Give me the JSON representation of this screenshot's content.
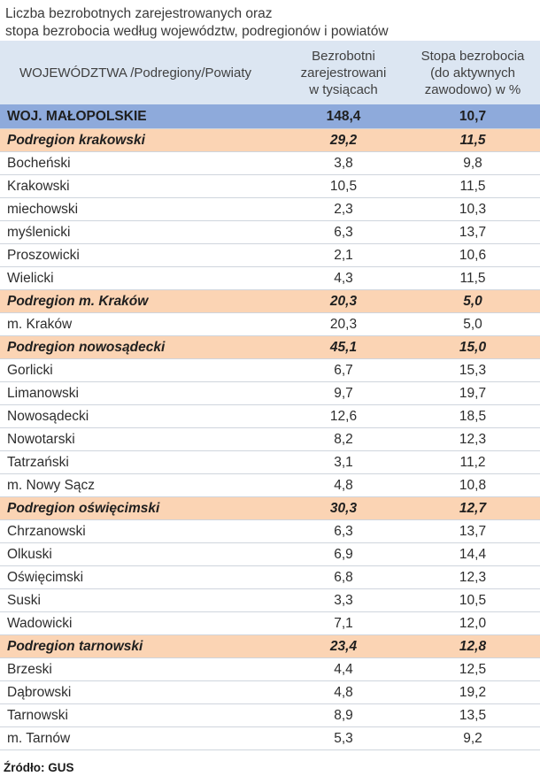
{
  "title": {
    "line1": "Liczba bezrobotnych zarejestrowanych oraz",
    "line2": "stopa bezrobocia według województw, podregionów  i  powiatów"
  },
  "table": {
    "headers": {
      "col1": "WOJEWÓDZTWA /Podregiony/Powiaty",
      "col2": [
        "Bezrobotni",
        "zarejestrowani",
        "w tysiącach"
      ],
      "col3": [
        "Stopa bezrobocia",
        "(do aktywnych",
        "zawodowo) w %"
      ]
    },
    "rows": [
      {
        "name": "WOJ. MAŁOPOLSKIE",
        "unemployed": "148,4",
        "rate": "10,7",
        "level": "woj"
      },
      {
        "name": "Podregion krakowski",
        "unemployed": "29,2",
        "rate": "11,5",
        "level": "pod"
      },
      {
        "name": "Bocheński",
        "unemployed": "3,8",
        "rate": "9,8",
        "level": "pow"
      },
      {
        "name": "Krakowski",
        "unemployed": "10,5",
        "rate": "11,5",
        "level": "pow"
      },
      {
        "name": "miechowski",
        "unemployed": "2,3",
        "rate": "10,3",
        "level": "pow"
      },
      {
        "name": "myślenicki",
        "unemployed": "6,3",
        "rate": "13,7",
        "level": "pow"
      },
      {
        "name": "Proszowicki",
        "unemployed": "2,1",
        "rate": "10,6",
        "level": "pow"
      },
      {
        "name": "Wielicki",
        "unemployed": "4,3",
        "rate": "11,5",
        "level": "pow"
      },
      {
        "name": "Podregion m. Kraków",
        "unemployed": "20,3",
        "rate": "5,0",
        "level": "pod"
      },
      {
        "name": "m. Kraków",
        "unemployed": "20,3",
        "rate": "5,0",
        "level": "pow"
      },
      {
        "name": "Podregion nowosądecki",
        "unemployed": "45,1",
        "rate": "15,0",
        "level": "pod"
      },
      {
        "name": "Gorlicki",
        "unemployed": "6,7",
        "rate": "15,3",
        "level": "pow"
      },
      {
        "name": "Limanowski",
        "unemployed": "9,7",
        "rate": "19,7",
        "level": "pow"
      },
      {
        "name": "Nowosądecki",
        "unemployed": "12,6",
        "rate": "18,5",
        "level": "pow"
      },
      {
        "name": "Nowotarski",
        "unemployed": "8,2",
        "rate": "12,3",
        "level": "pow"
      },
      {
        "name": "Tatrzański",
        "unemployed": "3,1",
        "rate": "11,2",
        "level": "pow"
      },
      {
        "name": "m. Nowy Sącz",
        "unemployed": "4,8",
        "rate": "10,8",
        "level": "pow"
      },
      {
        "name": "Podregion oświęcimski",
        "unemployed": "30,3",
        "rate": "12,7",
        "level": "pod"
      },
      {
        "name": "Chrzanowski",
        "unemployed": "6,3",
        "rate": "13,7",
        "level": "pow"
      },
      {
        "name": "Olkuski",
        "unemployed": "6,9",
        "rate": "14,4",
        "level": "pow"
      },
      {
        "name": "Oświęcimski",
        "unemployed": "6,8",
        "rate": "12,3",
        "level": "pow"
      },
      {
        "name": "Suski",
        "unemployed": "3,3",
        "rate": "10,5",
        "level": "pow"
      },
      {
        "name": "Wadowicki",
        "unemployed": "7,1",
        "rate": "12,0",
        "level": "pow"
      },
      {
        "name": "Podregion tarnowski",
        "unemployed": "23,4",
        "rate": "12,8",
        "level": "pod"
      },
      {
        "name": "Brzeski",
        "unemployed": "4,4",
        "rate": "12,5",
        "level": "pow"
      },
      {
        "name": "Dąbrowski",
        "unemployed": "4,8",
        "rate": "19,2",
        "level": "pow"
      },
      {
        "name": "Tarnowski",
        "unemployed": "8,9",
        "rate": "13,5",
        "level": "pow"
      },
      {
        "name": "m. Tarnów",
        "unemployed": "5,3",
        "rate": "9,2",
        "level": "pow"
      }
    ]
  },
  "source": "Źródło: GUS",
  "colors": {
    "header_bg": "#dce6f2",
    "voivodeship_bg": "#8eaadb",
    "subregion_bg": "#fbd4b4"
  }
}
